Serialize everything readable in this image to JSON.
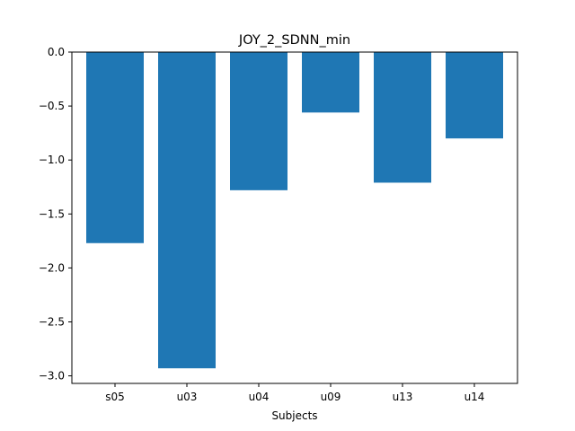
{
  "chart_data": {
    "type": "bar",
    "title": "JOY_2_SDNN_min",
    "xlabel": "Subjects",
    "ylabel": "",
    "categories": [
      "s05",
      "u03",
      "u04",
      "u09",
      "u13",
      "u14"
    ],
    "values": [
      -1.77,
      -2.93,
      -1.28,
      -0.56,
      -1.21,
      -0.8
    ],
    "ylim": [
      -3.07,
      0.0
    ],
    "yticks": [
      0.0,
      -0.5,
      -1.0,
      -1.5,
      -2.0,
      -2.5,
      -3.0
    ],
    "ytick_labels": [
      "0.0",
      "−0.5",
      "−1.0",
      "−1.5",
      "−2.0",
      "−2.5",
      "−3.0"
    ],
    "bar_color": "#1f77b4",
    "grid": false,
    "legend": "none"
  }
}
